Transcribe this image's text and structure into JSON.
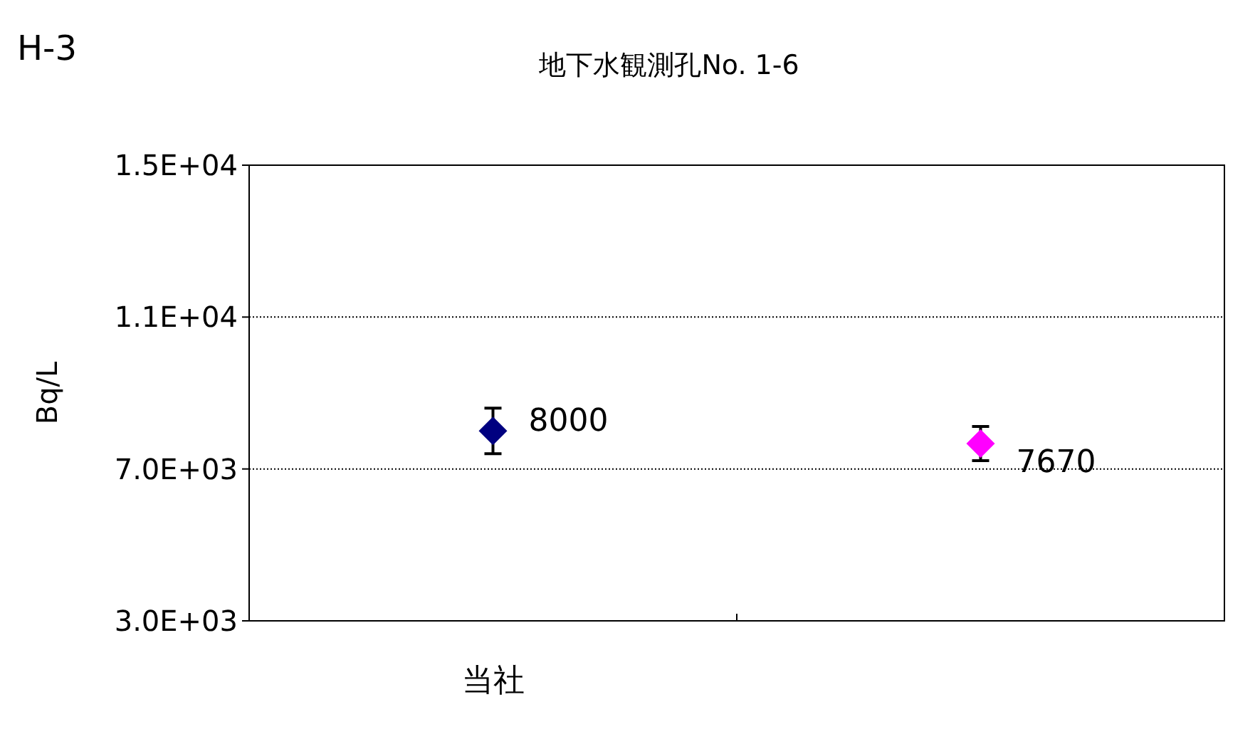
{
  "chart_data": {
    "type": "scatter",
    "title": "地下水観測孔No. 1-6",
    "annotations": [
      "H-3"
    ],
    "ylabel": "Bq/L",
    "categories": [
      "当社",
      null
    ],
    "values": [
      8000,
      7670
    ],
    "colors": [
      "#000080",
      "#ff00ff"
    ],
    "errors": [
      600,
      450
    ],
    "value_labels": [
      "8000",
      "7670"
    ],
    "marker": "diamond",
    "ylim": [
      3000,
      15000
    ],
    "yticks": [
      {
        "value": 3000,
        "label": "3.0E+03"
      },
      {
        "value": 7000,
        "label": "7.0E+03"
      },
      {
        "value": 11000,
        "label": "1.1E+04"
      },
      {
        "value": 15000,
        "label": "1.5E+04"
      }
    ],
    "grid": "y"
  }
}
